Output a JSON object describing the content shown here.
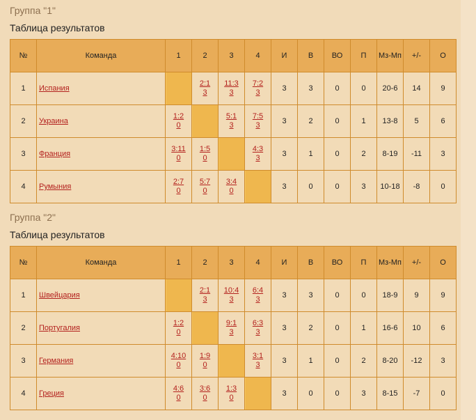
{
  "headers": [
    "№",
    "Команда",
    "1",
    "2",
    "3",
    "4",
    "И",
    "В",
    "ВО",
    "П",
    "Мз-Мп",
    "+/-",
    "О"
  ],
  "groups": [
    {
      "title": "Группа \"1\"",
      "subtitle": "Таблица результатов",
      "rows": [
        {
          "n": "1",
          "team": "Испания",
          "scores": [
            null,
            [
              "2:1",
              "3"
            ],
            [
              "11:3",
              "3"
            ],
            [
              "7:2",
              "3"
            ]
          ],
          "i": "3",
          "v": "3",
          "vo": "0",
          "p": "0",
          "goals": "20-6",
          "diff": "14",
          "pts": "9"
        },
        {
          "n": "2",
          "team": "Украина",
          "scores": [
            [
              "1:2",
              "0"
            ],
            null,
            [
              "5:1",
              "3"
            ],
            [
              "7:5",
              "3"
            ]
          ],
          "i": "3",
          "v": "2",
          "vo": "0",
          "p": "1",
          "goals": "13-8",
          "diff": "5",
          "pts": "6"
        },
        {
          "n": "3",
          "team": "Франция",
          "scores": [
            [
              "3:11",
              "0"
            ],
            [
              "1:5",
              "0"
            ],
            null,
            [
              "4:3",
              "3"
            ]
          ],
          "i": "3",
          "v": "1",
          "vo": "0",
          "p": "2",
          "goals": "8-19",
          "diff": "-11",
          "pts": "3"
        },
        {
          "n": "4",
          "team": "Румыния",
          "scores": [
            [
              "2:7",
              "0"
            ],
            [
              "5:7",
              "0"
            ],
            [
              "3:4",
              "0"
            ],
            null
          ],
          "i": "3",
          "v": "0",
          "vo": "0",
          "p": "3",
          "goals": "10-18",
          "diff": "-8",
          "pts": "0"
        }
      ]
    },
    {
      "title": "Группа \"2\"",
      "subtitle": "Таблица результатов",
      "rows": [
        {
          "n": "1",
          "team": "Швейцария",
          "scores": [
            null,
            [
              "2:1",
              "3"
            ],
            [
              "10:4",
              "3"
            ],
            [
              "6:4",
              "3"
            ]
          ],
          "i": "3",
          "v": "3",
          "vo": "0",
          "p": "0",
          "goals": "18-9",
          "diff": "9",
          "pts": "9"
        },
        {
          "n": "2",
          "team": "Португалия",
          "scores": [
            [
              "1:2",
              "0"
            ],
            null,
            [
              "9:1",
              "3"
            ],
            [
              "6:3",
              "3"
            ]
          ],
          "i": "3",
          "v": "2",
          "vo": "0",
          "p": "1",
          "goals": "16-6",
          "diff": "10",
          "pts": "6"
        },
        {
          "n": "3",
          "team": "Германия",
          "scores": [
            [
              "4:10",
              "0"
            ],
            [
              "1:9",
              "0"
            ],
            null,
            [
              "3:1",
              "3"
            ]
          ],
          "i": "3",
          "v": "1",
          "vo": "0",
          "p": "2",
          "goals": "8-20",
          "diff": "-12",
          "pts": "3"
        },
        {
          "n": "4",
          "team": "Греция",
          "scores": [
            [
              "4:6",
              "0"
            ],
            [
              "3:6",
              "0"
            ],
            [
              "1:3",
              "0"
            ],
            null
          ],
          "i": "3",
          "v": "0",
          "vo": "0",
          "p": "3",
          "goals": "8-15",
          "diff": "-7",
          "pts": "0"
        }
      ]
    }
  ]
}
